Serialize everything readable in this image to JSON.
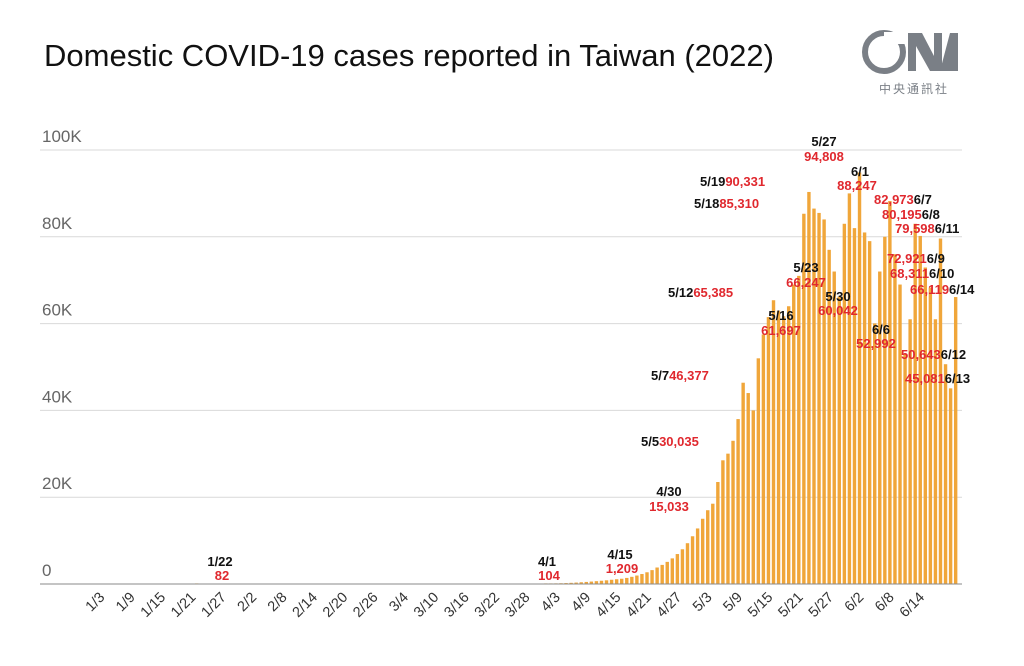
{
  "title": "Domestic COVID-19 cases reported in Taiwan (2022)",
  "logo": {
    "name": "CNA",
    "text": "中央通訊社"
  },
  "colors": {
    "bar": "#f0a63a",
    "grid": "#d9d9d9",
    "axis": "#8a8a8a",
    "date_label": "#111111",
    "value_label": "#e0282e"
  },
  "chart_data": {
    "type": "bar",
    "title": "Domestic COVID-19 cases reported in Taiwan (2022)",
    "xlabel": "",
    "ylabel": "",
    "ylim": [
      0,
      100000
    ],
    "grid": true,
    "y_ticks": [
      {
        "value": 0,
        "label": "0"
      },
      {
        "value": 20000,
        "label": "20K"
      },
      {
        "value": 40000,
        "label": "40K"
      },
      {
        "value": 60000,
        "label": "60K"
      },
      {
        "value": 80000,
        "label": "80K"
      },
      {
        "value": 100000,
        "label": "100K"
      }
    ],
    "x_start": "1/3",
    "x_end": "6/14",
    "x_tick_labels": [
      "1/3",
      "1/9",
      "1/15",
      "1/21",
      "1/27",
      "2/2",
      "2/8",
      "2/14",
      "2/20",
      "2/26",
      "3/4",
      "3/10",
      "3/16",
      "3/22",
      "3/28",
      "4/3",
      "4/9",
      "4/15",
      "4/21",
      "4/27",
      "5/3",
      "5/9",
      "5/15",
      "5/21",
      "5/27",
      "6/2",
      "6/8",
      "6/14"
    ],
    "values": [
      0,
      0,
      0,
      0,
      0,
      0,
      0,
      0,
      0,
      0,
      0,
      0,
      0,
      0,
      0,
      0,
      0,
      0,
      0,
      82,
      0,
      0,
      0,
      0,
      0,
      0,
      0,
      0,
      0,
      0,
      0,
      0,
      0,
      0,
      0,
      0,
      0,
      0,
      0,
      0,
      0,
      0,
      0,
      0,
      0,
      0,
      0,
      0,
      0,
      0,
      0,
      0,
      0,
      0,
      0,
      0,
      0,
      0,
      0,
      0,
      0,
      0,
      0,
      0,
      0,
      0,
      0,
      0,
      0,
      0,
      0,
      0,
      0,
      0,
      0,
      0,
      0,
      0,
      0,
      0,
      0,
      0,
      0,
      0,
      0,
      0,
      0,
      0,
      104,
      120,
      150,
      180,
      220,
      270,
      330,
      400,
      480,
      560,
      650,
      750,
      850,
      980,
      1100,
      1209,
      1400,
      1650,
      1950,
      2300,
      2700,
      3200,
      3800,
      4400,
      5100,
      5900,
      6900,
      8000,
      9400,
      11000,
      12800,
      15033,
      17000,
      18500,
      23500,
      28500,
      30035,
      33000,
      38000,
      46377,
      44000,
      40000,
      52000,
      57500,
      61500,
      65385,
      63000,
      61697,
      64000,
      69000,
      71000,
      85310,
      90331,
      86500,
      85500,
      84000,
      77000,
      72000,
      66247,
      83000,
      90000,
      82000,
      94808,
      81000,
      79000,
      60042,
      72000,
      80000,
      88247,
      76000,
      69000,
      52992,
      61000,
      83000,
      80195,
      72921,
      68311,
      61000,
      79598,
      50643,
      45081,
      66119
    ],
    "annotations": [
      {
        "date": "1/22",
        "value": "82"
      },
      {
        "date": "4/1",
        "value": "104"
      },
      {
        "date": "4/15",
        "value": "1,209"
      },
      {
        "date": "4/30",
        "value": "15,033"
      },
      {
        "date": "5/5",
        "value": "30,035"
      },
      {
        "date": "5/7",
        "value": "46,377"
      },
      {
        "date": "5/12",
        "value": "65,385"
      },
      {
        "date": "5/16",
        "value": "61,697"
      },
      {
        "date": "5/18",
        "value": "85,310"
      },
      {
        "date": "5/19",
        "value": "90,331"
      },
      {
        "date": "5/23",
        "value": "66,247"
      },
      {
        "date": "5/27",
        "value": "94,808"
      },
      {
        "date": "5/30",
        "value": "60,042"
      },
      {
        "date": "6/1",
        "value": "88,247"
      },
      {
        "date": "6/6",
        "value": "52,992"
      },
      {
        "date": "6/7",
        "value": "82,973"
      },
      {
        "date": "6/8",
        "value": "80,195"
      },
      {
        "date": "6/9",
        "value": "72,921"
      },
      {
        "date": "6/10",
        "value": "68,311"
      },
      {
        "date": "6/11",
        "value": "79,598"
      },
      {
        "date": "6/12",
        "value": "50,643"
      },
      {
        "date": "6/13",
        "value": "45,081"
      },
      {
        "date": "6/14",
        "value": "66,119"
      }
    ]
  }
}
